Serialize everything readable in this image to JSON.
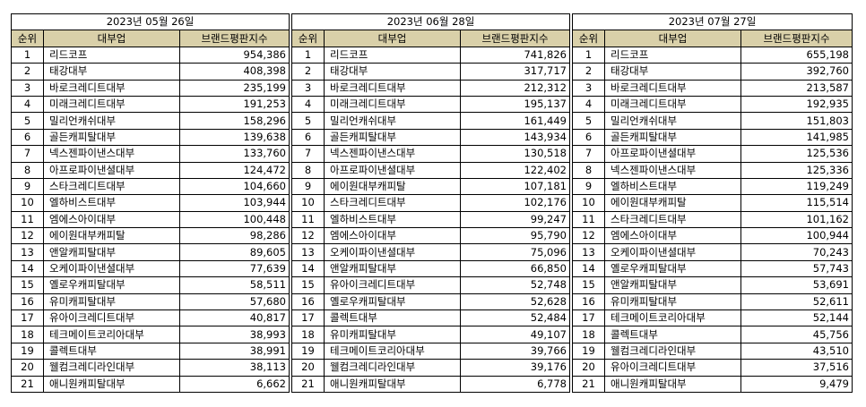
{
  "columns": {
    "rank": "순위",
    "company": "대부업",
    "index": "브랜드평판지수"
  },
  "tables": [
    {
      "date": "2023년 05월 26일",
      "rows": [
        {
          "rank": "1",
          "company": "리드코프",
          "index": "954,386"
        },
        {
          "rank": "2",
          "company": "태강대부",
          "index": "408,398"
        },
        {
          "rank": "3",
          "company": "바로크레디트대부",
          "index": "235,199"
        },
        {
          "rank": "4",
          "company": "미래크레디트대부",
          "index": "191,253"
        },
        {
          "rank": "5",
          "company": "밀리언캐쉬대부",
          "index": "158,296"
        },
        {
          "rank": "6",
          "company": "골든캐피탈대부",
          "index": "139,638"
        },
        {
          "rank": "7",
          "company": "넥스젠파이낸스대부",
          "index": "133,760"
        },
        {
          "rank": "8",
          "company": "아프로파이낸셜대부",
          "index": "124,472"
        },
        {
          "rank": "9",
          "company": "스타크레디트대부",
          "index": "104,660"
        },
        {
          "rank": "10",
          "company": "엘하비스트대부",
          "index": "103,944"
        },
        {
          "rank": "11",
          "company": "엠에스아이대부",
          "index": "100,448"
        },
        {
          "rank": "12",
          "company": "에이원대부캐피탈",
          "index": "98,286"
        },
        {
          "rank": "13",
          "company": "앤알캐피탈대부",
          "index": "89,605"
        },
        {
          "rank": "14",
          "company": "오케이파이낸셜대부",
          "index": "77,639"
        },
        {
          "rank": "15",
          "company": "옐로우캐피탈대부",
          "index": "58,511"
        },
        {
          "rank": "16",
          "company": "유미캐피탈대부",
          "index": "57,680"
        },
        {
          "rank": "17",
          "company": "유아이크레디트대부",
          "index": "40,817"
        },
        {
          "rank": "18",
          "company": "테크메이트코리아대부",
          "index": "38,993"
        },
        {
          "rank": "19",
          "company": "콜렉트대부",
          "index": "38,991"
        },
        {
          "rank": "20",
          "company": "웰컴크레디라인대부",
          "index": "38,113"
        },
        {
          "rank": "21",
          "company": "애니원캐피탈대부",
          "index": "6,662"
        }
      ]
    },
    {
      "date": "2023년 06월 28일",
      "rows": [
        {
          "rank": "1",
          "company": "리드코프",
          "index": "741,826"
        },
        {
          "rank": "2",
          "company": "태강대부",
          "index": "317,717"
        },
        {
          "rank": "3",
          "company": "바로크레디트대부",
          "index": "212,312"
        },
        {
          "rank": "4",
          "company": "미래크레디트대부",
          "index": "195,137"
        },
        {
          "rank": "5",
          "company": "밀리언캐쉬대부",
          "index": "161,449"
        },
        {
          "rank": "6",
          "company": "골든캐피탈대부",
          "index": "143,934"
        },
        {
          "rank": "7",
          "company": "넥스젠파이낸스대부",
          "index": "130,518"
        },
        {
          "rank": "8",
          "company": "아프로파이낸셜대부",
          "index": "122,402"
        },
        {
          "rank": "9",
          "company": "에이원대부캐피탈",
          "index": "107,181"
        },
        {
          "rank": "10",
          "company": "스타크레디트대부",
          "index": "102,176"
        },
        {
          "rank": "11",
          "company": "엘하비스트대부",
          "index": "99,247"
        },
        {
          "rank": "12",
          "company": "엠에스아이대부",
          "index": "95,790"
        },
        {
          "rank": "13",
          "company": "오케이파이낸셜대부",
          "index": "75,096"
        },
        {
          "rank": "14",
          "company": "앤알캐피탈대부",
          "index": "66,850"
        },
        {
          "rank": "15",
          "company": "유아이크레디트대부",
          "index": "52,748"
        },
        {
          "rank": "16",
          "company": "옐로우캐피탈대부",
          "index": "52,628"
        },
        {
          "rank": "17",
          "company": "콜렉트대부",
          "index": "52,484"
        },
        {
          "rank": "18",
          "company": "유미캐피탈대부",
          "index": "49,107"
        },
        {
          "rank": "19",
          "company": "테크메이트코리아대부",
          "index": "39,766"
        },
        {
          "rank": "20",
          "company": "웰컴크레디라인대부",
          "index": "39,176"
        },
        {
          "rank": "21",
          "company": "애니원캐피탈대부",
          "index": "6,778"
        }
      ]
    },
    {
      "date": "2023년 07월 27일",
      "rows": [
        {
          "rank": "1",
          "company": "리드코프",
          "index": "655,198"
        },
        {
          "rank": "2",
          "company": "태강대부",
          "index": "392,760"
        },
        {
          "rank": "3",
          "company": "바로크레디트대부",
          "index": "213,587"
        },
        {
          "rank": "4",
          "company": "미래크레디트대부",
          "index": "192,935"
        },
        {
          "rank": "5",
          "company": "밀리언캐쉬대부",
          "index": "151,803"
        },
        {
          "rank": "6",
          "company": "골든캐피탈대부",
          "index": "141,985"
        },
        {
          "rank": "7",
          "company": "아프로파이낸셜대부",
          "index": "125,536"
        },
        {
          "rank": "8",
          "company": "넥스젠파이낸스대부",
          "index": "125,336"
        },
        {
          "rank": "9",
          "company": "엘하비스트대부",
          "index": "119,249"
        },
        {
          "rank": "10",
          "company": "에이원대부캐피탈",
          "index": "115,514"
        },
        {
          "rank": "11",
          "company": "스타크레디트대부",
          "index": "101,162"
        },
        {
          "rank": "12",
          "company": "엠에스아이대부",
          "index": "100,944"
        },
        {
          "rank": "13",
          "company": "오케이파이낸셜대부",
          "index": "70,243"
        },
        {
          "rank": "14",
          "company": "옐로우캐피탈대부",
          "index": "57,743"
        },
        {
          "rank": "15",
          "company": "앤알캐피탈대부",
          "index": "53,691"
        },
        {
          "rank": "16",
          "company": "유미캐피탈대부",
          "index": "52,611"
        },
        {
          "rank": "17",
          "company": "테크메이트코리아대부",
          "index": "52,144"
        },
        {
          "rank": "18",
          "company": "콜렉트대부",
          "index": "45,756"
        },
        {
          "rank": "19",
          "company": "웰컴크레디라인대부",
          "index": "43,510"
        },
        {
          "rank": "20",
          "company": "유아이크레디트대부",
          "index": "37,516"
        },
        {
          "rank": "21",
          "company": "애니원캐피탈대부",
          "index": "9,479"
        }
      ]
    }
  ]
}
